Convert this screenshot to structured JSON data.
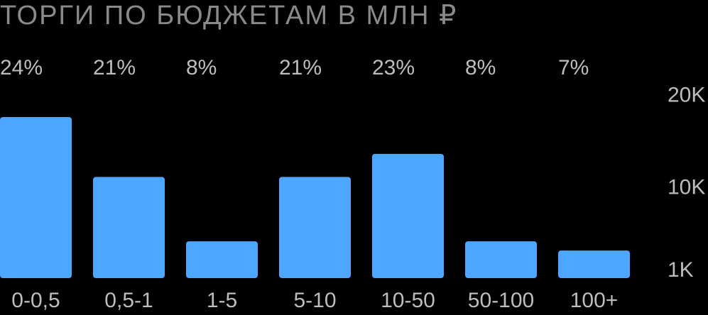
{
  "colors": {
    "background": "#000000",
    "bar": "#4da6ff",
    "title": "#8a8a8a",
    "labels": "#bdbdbd"
  },
  "chart_data": {
    "type": "bar",
    "title": "ТОРГИ ПО БЮДЖЕТАМ В МЛН ₽",
    "xlabel": "",
    "ylabel": "",
    "categories": [
      "0-0,5",
      "0,5-1",
      "1-5",
      "5-10",
      "10-50",
      "50-100",
      "100+"
    ],
    "values": [
      17500,
      11000,
      4000,
      11000,
      13500,
      4000,
      3000
    ],
    "percent_labels": [
      "24%",
      "21%",
      "8%",
      "21%",
      "23%",
      "8%",
      "7%"
    ],
    "y_ticks": [
      {
        "value": 1000,
        "label": "1K"
      },
      {
        "value": 10000,
        "label": "10K"
      },
      {
        "value": 20000,
        "label": "20K"
      }
    ],
    "ylim": [
      0,
      21800
    ],
    "axis_position": "right",
    "grid": false,
    "legend": "none"
  }
}
